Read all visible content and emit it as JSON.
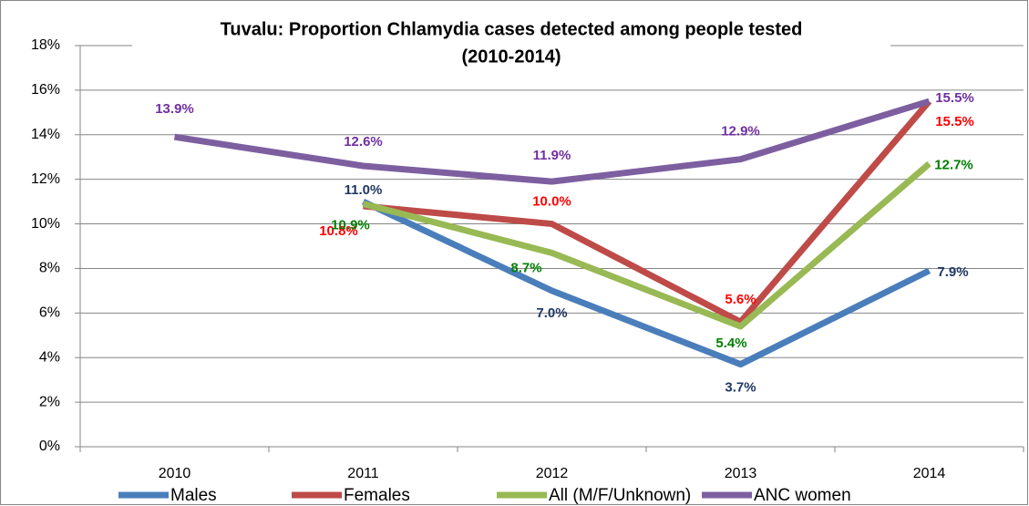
{
  "chart_data": {
    "type": "line",
    "title": [
      "Tuvalu: Proportion Chlamydia cases detected among people tested",
      "(2010-2014)"
    ],
    "categories": [
      "2010",
      "2011",
      "2012",
      "2013",
      "2014"
    ],
    "series": [
      {
        "name": "Males",
        "color": "#4a7ebb",
        "label_color": "#1f3864",
        "values": [
          null,
          11.0,
          7.0,
          3.7,
          7.9
        ],
        "value_labels": [
          null,
          "11.0%",
          "7.0%",
          "3.7%",
          "7.9%"
        ]
      },
      {
        "name": "Females",
        "color": "#be4b48",
        "label_color": "#ff0000",
        "values": [
          null,
          10.8,
          10.0,
          5.6,
          15.5
        ],
        "value_labels": [
          null,
          "10.8%",
          "10.0%",
          "5.6%",
          "15.5%"
        ]
      },
      {
        "name": "All (M/F/Unknown)",
        "color": "#98b954",
        "label_color": "#008000",
        "values": [
          null,
          10.9,
          8.7,
          5.4,
          12.7
        ],
        "value_labels": [
          null,
          "10.9%",
          "8.7%",
          "5.4%",
          "12.7%"
        ]
      },
      {
        "name": "ANC women",
        "color": "#7d5fa0",
        "label_color": "#7030a0",
        "values": [
          13.9,
          12.6,
          11.9,
          12.9,
          15.5
        ],
        "value_labels": [
          "13.9%",
          "12.6%",
          "11.9%",
          "12.9%",
          "15.5%"
        ]
      }
    ],
    "ylim": [
      0,
      18
    ],
    "yticks": [
      {
        "value": 0,
        "label": "0%"
      },
      {
        "value": 2,
        "label": "2%"
      },
      {
        "value": 4,
        "label": "4%"
      },
      {
        "value": 6,
        "label": "6%"
      },
      {
        "value": 8,
        "label": "8%"
      },
      {
        "value": 10,
        "label": "10%"
      },
      {
        "value": 12,
        "label": "12%"
      },
      {
        "value": 14,
        "label": "14%"
      },
      {
        "value": 16,
        "label": "16%"
      },
      {
        "value": 18,
        "label": "18%"
      }
    ],
    "grid": true,
    "legend": "bottom"
  }
}
